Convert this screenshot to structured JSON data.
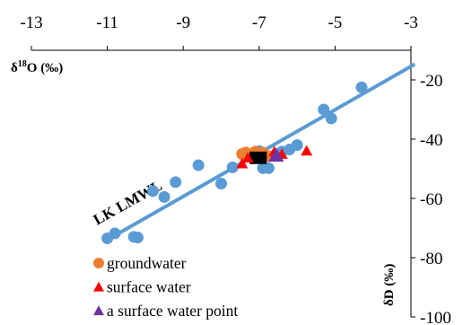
{
  "chart_data": {
    "type": "scatter",
    "x_axis": {
      "label_main": "δ",
      "label_sup": "18",
      "label_rest": "O (‰)",
      "range": [
        -13,
        -3
      ],
      "ticks": [
        -13,
        -11,
        -9,
        -7,
        -5,
        -3
      ],
      "position": "top"
    },
    "y_axis": {
      "label": "δD (‰)",
      "range": [
        -100,
        -10
      ],
      "ticks": [
        -20,
        -40,
        -60,
        -80,
        -100
      ],
      "position": "right"
    },
    "grid": false,
    "legend": {
      "placement": "bottom-left",
      "entries": [
        {
          "label": "groundwater",
          "marker": "circle",
          "color": "#ED7D31"
        },
        {
          "label": "surface water",
          "marker": "triangle",
          "color": "#FF0000"
        },
        {
          "label": "a surface water point",
          "marker": "triangle",
          "color": "#7030A0"
        }
      ]
    },
    "lmwl": {
      "label": "LK LMWL",
      "color": "#5B9BD5",
      "x": [
        -11.1,
        -2.9
      ],
      "y": [
        -74.7,
        -14.7
      ]
    },
    "rain_color": "#5B9BD5",
    "rain": [
      {
        "x": -11.0,
        "y": -73.5
      },
      {
        "x": -10.8,
        "y": -71.8
      },
      {
        "x": -10.3,
        "y": -73.0
      },
      {
        "x": -10.2,
        "y": -73.2
      },
      {
        "x": -9.8,
        "y": -57.5
      },
      {
        "x": -9.5,
        "y": -59.5
      },
      {
        "x": -9.2,
        "y": -54.5
      },
      {
        "x": -8.6,
        "y": -48.8
      },
      {
        "x": -8.0,
        "y": -55.0
      },
      {
        "x": -7.7,
        "y": -49.5
      },
      {
        "x": -7.3,
        "y": -45.0
      },
      {
        "x": -7.0,
        "y": -44.0
      },
      {
        "x": -6.9,
        "y": -49.8
      },
      {
        "x": -6.75,
        "y": -49.8
      },
      {
        "x": -6.4,
        "y": -44.2
      },
      {
        "x": -6.2,
        "y": -43.5
      },
      {
        "x": -6.0,
        "y": -42.0
      },
      {
        "x": -5.3,
        "y": -30.0
      },
      {
        "x": -5.1,
        "y": -33.0
      },
      {
        "x": -4.3,
        "y": -22.5
      }
    ],
    "groundwater": [
      {
        "x": -7.45,
        "y": -45.0
      },
      {
        "x": -7.35,
        "y": -44.5
      },
      {
        "x": -7.25,
        "y": -45.5
      },
      {
        "x": -7.1,
        "y": -44.2
      },
      {
        "x": -7.0,
        "y": -45.3
      },
      {
        "x": -6.9,
        "y": -44.6
      },
      {
        "x": -6.75,
        "y": -45.8
      }
    ],
    "groundwater_box": {
      "x": [
        -7.25,
        -6.8
      ],
      "y": [
        -44.2,
        -48.4
      ],
      "color": "#000000"
    },
    "surface_water": [
      {
        "x": -7.45,
        "y": -48.5
      },
      {
        "x": -7.3,
        "y": -46.5
      },
      {
        "x": -6.6,
        "y": -44.5
      },
      {
        "x": -6.4,
        "y": -45.3
      },
      {
        "x": -5.75,
        "y": -44.2
      }
    ],
    "surface_water_point": [
      {
        "x": -6.55,
        "y": -45.8
      }
    ]
  }
}
